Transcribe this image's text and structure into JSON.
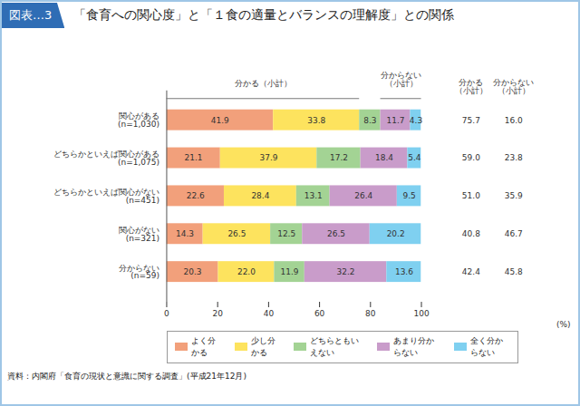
{
  "chart_data": {
    "type": "bar",
    "orientation": "horizontal",
    "stacked": true,
    "data_labels": true,
    "grid": false,
    "legend": "bottom",
    "figure_label": "図表…3",
    "title": "「食育への関心度」と「１食の適量とバランスの理解度」との関係",
    "source": "資料：内閣府「食育の現状と意識に関する調査」(平成21年12月)",
    "xlabel": "(%)",
    "xlim": [
      0,
      100
    ],
    "xticks": [
      0,
      20,
      40,
      60,
      80,
      100
    ],
    "categories": [
      "関心がある\n(n=1,030)",
      "どちらかといえば関心がある\n(n=1,075)",
      "どちらかといえば関心がない\n(n=451)",
      "関心がない\n(n=321)",
      "分からない\n(n=59)"
    ],
    "series": [
      {
        "name": "よく分かる",
        "color": "#f2a07b",
        "values": [
          41.9,
          21.1,
          22.6,
          14.3,
          20.3
        ]
      },
      {
        "name": "少し分かる",
        "color": "#fde35e",
        "values": [
          33.8,
          37.9,
          28.4,
          26.5,
          22.0
        ],
        "value_labels": [
          "33.8",
          "37.9",
          "28.4",
          "26.5",
          "22.0"
        ]
      },
      {
        "name": "どちらともいえない",
        "color": "#a3d394",
        "values": [
          8.3,
          17.2,
          13.1,
          12.5,
          11.9
        ]
      },
      {
        "name": "あまり分からない",
        "color": "#c99cca",
        "values": [
          11.7,
          18.4,
          26.4,
          26.5,
          32.2
        ]
      },
      {
        "name": "全く分からない",
        "color": "#7fd0f0",
        "values": [
          4.3,
          5.4,
          9.5,
          20.2,
          13.6
        ]
      }
    ],
    "brackets": [
      {
        "name": "分かる（小計）",
        "series": [
          0,
          1
        ]
      },
      {
        "name": "分からない\n（小計）",
        "series": [
          3,
          4
        ]
      }
    ],
    "columns": [
      {
        "name": "分かる\n（小計）",
        "values": [
          75.7,
          59.0,
          51.0,
          40.8,
          42.4
        ],
        "value_labels": [
          "75.7",
          "59.0",
          "51.0",
          "40.8",
          "42.4"
        ]
      },
      {
        "name": "分からない\n（小計）",
        "values": [
          16.0,
          23.8,
          35.9,
          46.7,
          45.8
        ],
        "value_labels": [
          "16.0",
          "23.8",
          "35.9",
          "46.7",
          "45.8"
        ]
      }
    ]
  }
}
